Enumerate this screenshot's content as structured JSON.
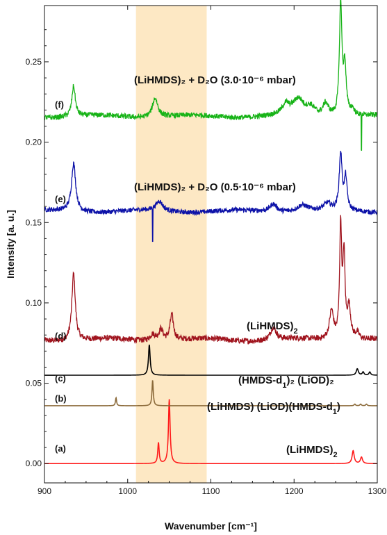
{
  "chart_data": {
    "type": "line",
    "xlabel": "Wavenumber [cm⁻¹]",
    "ylabel": "Intensity [a. u.]",
    "xlim": [
      900,
      1300
    ],
    "ylim": [
      -0.012,
      0.285
    ],
    "x_ticks": [
      900,
      1000,
      1100,
      1200,
      1300
    ],
    "y_ticks": [
      "0.00",
      "0.05",
      "0.10",
      "0.15",
      "0.20",
      "0.25"
    ],
    "y_tick_values": [
      0,
      0.05,
      0.1,
      0.15,
      0.2,
      0.25
    ],
    "highlight_band": {
      "x_from": 1010,
      "x_to": 1095,
      "color": "#fde8c4"
    },
    "grid": false,
    "series": [
      {
        "id": "a",
        "trace_label": "(a)",
        "annotation": "(LiHMDS)",
        "annotation_sub": "2",
        "annotation_rest": "",
        "color": "#ff1a1a",
        "baseline": 0.0,
        "noise": 0,
        "mode": "computed",
        "peaks": [
          [
            1037,
            0.013,
            1.0
          ],
          [
            1050,
            0.04,
            1.2
          ],
          [
            1271,
            0.008,
            1.5
          ],
          [
            1281,
            0.004,
            1.5
          ]
        ]
      },
      {
        "id": "b",
        "trace_label": "(b)",
        "annotation": "(LiHMDS) (LiOD)(HMDS-d",
        "annotation_sub": "1",
        "annotation_rest": ")",
        "color": "#8b6a3a",
        "baseline": 0.036,
        "noise": 0,
        "mode": "computed",
        "peaks": [
          [
            986,
            0.005,
            0.8
          ],
          [
            1030,
            0.016,
            0.9
          ],
          [
            1273,
            0.001,
            1.0
          ],
          [
            1280,
            0.001,
            1.0
          ],
          [
            1287,
            0.001,
            1.0
          ]
        ]
      },
      {
        "id": "c",
        "trace_label": "(c)",
        "annotation": "(HMDS-d",
        "annotation_sub": "1",
        "annotation_rest": ")₂ (LiOD)₂",
        "color": "#000000",
        "baseline": 0.055,
        "noise": 0,
        "mode": "computed",
        "peaks": [
          [
            1026,
            0.019,
            1.2
          ],
          [
            1276,
            0.004,
            1.5
          ],
          [
            1283,
            0.002,
            1.2
          ],
          [
            1291,
            0.002,
            1.2
          ]
        ]
      },
      {
        "id": "d",
        "trace_label": "(d)",
        "annotation": "(LiHMDS)",
        "annotation_sub": "2",
        "annotation_rest": "",
        "color": "#a0141e",
        "baseline": 0.077,
        "noise": 0.0018,
        "mode": "measured",
        "peaks": [
          [
            935,
            0.042,
            2.5
          ],
          [
            1030,
            0.004,
            4
          ],
          [
            1040,
            0.007,
            3
          ],
          [
            1053,
            0.016,
            2.5
          ],
          [
            1175,
            0.008,
            4
          ],
          [
            1245,
            0.018,
            3
          ],
          [
            1256,
            0.07,
            1.5
          ],
          [
            1260,
            0.05,
            1.5
          ],
          [
            1266,
            0.02,
            2.5
          ],
          [
            1276,
            0.004,
            3
          ]
        ]
      },
      {
        "id": "e",
        "trace_label": "(e)",
        "annotation": "(LiHMDS)₂ + D₂O (0.5·10⁻⁶ mbar)",
        "annotation_sub": "",
        "annotation_rest": "",
        "color": "#0d12a8",
        "baseline": 0.157,
        "noise": 0.0015,
        "mode": "measured",
        "peaks": [
          [
            935,
            0.03,
            3
          ],
          [
            1038,
            0.006,
            5
          ],
          [
            1175,
            0.005,
            5
          ],
          [
            1210,
            0.004,
            8
          ],
          [
            1240,
            0.004,
            5
          ],
          [
            1256,
            0.035,
            2
          ],
          [
            1262,
            0.02,
            2
          ]
        ],
        "spike": [
          1030,
          -0.02
        ]
      },
      {
        "id": "f",
        "trace_label": "(f)",
        "annotation": "(LiHMDS)₂ + D₂O (3.0·10⁻⁶ mbar)",
        "annotation_sub": "",
        "annotation_rest": "",
        "color": "#17b317",
        "baseline": 0.216,
        "noise": 0.0016,
        "mode": "measured",
        "peaks": [
          [
            935,
            0.019,
            2.5
          ],
          [
            1033,
            0.012,
            4
          ],
          [
            1190,
            0.006,
            5
          ],
          [
            1205,
            0.01,
            8
          ],
          [
            1220,
            0.005,
            6
          ],
          [
            1238,
            0.008,
            4
          ],
          [
            1256,
            0.07,
            1.8
          ],
          [
            1261,
            0.03,
            2
          ],
          [
            1270,
            0.004,
            3
          ]
        ],
        "spike": [
          1281,
          -0.022
        ]
      }
    ]
  }
}
